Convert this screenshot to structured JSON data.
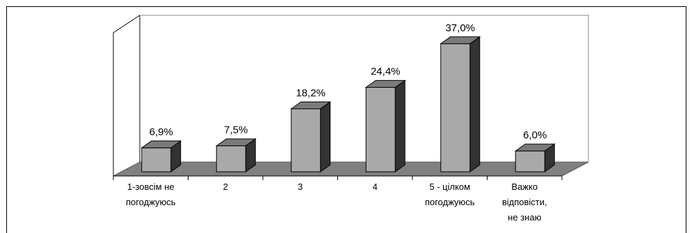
{
  "chart_data": {
    "type": "bar",
    "title": "",
    "xlabel": "",
    "ylabel": "",
    "categories": [
      [
        "1-зовсім не",
        "погоджуюсь"
      ],
      [
        "2"
      ],
      [
        "3"
      ],
      [
        "4"
      ],
      [
        "5 - цілком",
        "погоджуюсь"
      ],
      [
        "Важко",
        "відповісти,",
        "не знаю"
      ]
    ],
    "values": [
      6.9,
      7.5,
      18.2,
      24.4,
      37.0,
      6.0
    ],
    "value_labels": [
      "6,9%",
      "7,5%",
      "18,2%",
      "24,4%",
      "37,0%",
      "6,0%"
    ],
    "ylim": [
      0,
      40
    ],
    "grid": false,
    "legend": "none",
    "colors": {
      "bar_front": "#a9a9a9",
      "bar_side": "#333333",
      "bar_top": "#7a7a7a",
      "floor": "#808080",
      "wall": "#ffffff"
    }
  }
}
